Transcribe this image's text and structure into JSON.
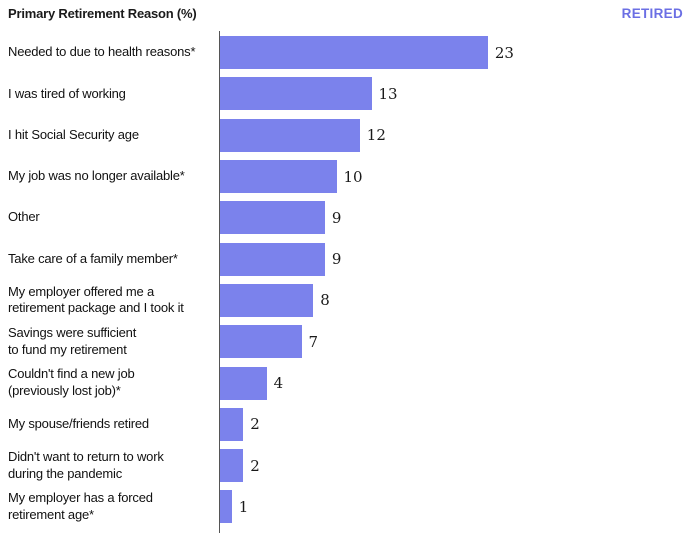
{
  "header": {
    "title": "Primary Retirement Reason (%)",
    "badge": "RETIRED"
  },
  "colors": {
    "bar": "#7b82ec",
    "badge": "#6b6fe4",
    "axis": "#555555",
    "text": "#111111"
  },
  "chart_data": {
    "type": "bar",
    "orientation": "horizontal",
    "title": "Primary Retirement Reason (%)",
    "group_label": "RETIRED",
    "unit": "%",
    "xlim": [
      0,
      25
    ],
    "grid": false,
    "legend_position": "top-right",
    "categories": [
      "Needed to due to health reasons*",
      "I was tired of working",
      "I hit Social Security age",
      "My job was no longer available*",
      "Other",
      "Take care of a family member*",
      "My employer offered me a\nretirement package and I took it",
      "Savings were sufficient\nto fund my retirement",
      "Couldn't find a new job\n(previously lost job)*",
      "My spouse/friends retired",
      "Didn't want to return to work\nduring the pandemic",
      "My employer has a forced\nretirement age*"
    ],
    "values": [
      23,
      13,
      12,
      10,
      9,
      9,
      8,
      7,
      4,
      2,
      2,
      1
    ]
  }
}
